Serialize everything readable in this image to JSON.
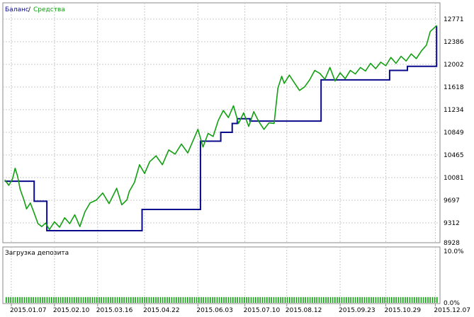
{
  "colors": {
    "balance": "#0a0a8c",
    "equity": "#12a012",
    "grid": "#c8c8c8",
    "frame": "#8a8a8a",
    "text": "#000000",
    "deposit_load": "#12a012"
  },
  "legend": {
    "balance_label": "Баланс",
    "separator": "/",
    "equity_label": "Средства"
  },
  "chart_data": [
    {
      "type": "line",
      "series": [
        {
          "name": "Баланс",
          "x": [
            "2015.01.02",
            "2015.01.17",
            "2015.01.25",
            "2015.02.04",
            "2015.02.28",
            "2015.03.08",
            "2015.03.15",
            "2015.04.01",
            "2015.04.20",
            "2015.06.03",
            "2015.06.05",
            "2015.06.20",
            "2015.06.21",
            "2015.06.29",
            "2015.06.30",
            "2015.07.03",
            "2015.07.04",
            "2015.07.13",
            "2015.07.14",
            "2015.07.28",
            "2015.08.06",
            "2015.08.15",
            "2015.09.07",
            "2015.09.08",
            "2015.10.05",
            "2015.10.24",
            "2015.11.01",
            "2015.11.15",
            "2015.12.01",
            "2015.12.05",
            "2015.12.06",
            "2015.12.08"
          ],
          "values": [
            10020,
            10020,
            9680,
            9180,
            9180,
            9180,
            9180,
            9180,
            9540,
            9540,
            10700,
            10700,
            10850,
            10850,
            11000,
            11000,
            11080,
            11080,
            11040,
            11040,
            11040,
            11040,
            11040,
            11740,
            11740,
            11740,
            11900,
            11970,
            11970,
            11970,
            11970,
            12650
          ]
        },
        {
          "name": "Средства",
          "x": [
            "2015.01.02",
            "2015.01.05",
            "2015.01.08",
            "2015.01.10",
            "2015.01.12",
            "2015.01.14",
            "2015.01.17",
            "2015.01.19",
            "2015.01.22",
            "2015.01.25",
            "2015.01.28",
            "2015.01.31",
            "2015.02.03",
            "2015.02.06",
            "2015.02.10",
            "2015.02.14",
            "2015.02.18",
            "2015.02.22",
            "2015.02.26",
            "2015.03.02",
            "2015.03.06",
            "2015.03.10",
            "2015.03.15",
            "2015.03.20",
            "2015.03.25",
            "2015.03.31",
            "2015.04.04",
            "2015.04.08",
            "2015.04.10",
            "2015.04.14",
            "2015.04.18",
            "2015.04.22",
            "2015.04.26",
            "2015.05.01",
            "2015.05.06",
            "2015.05.11",
            "2015.05.16",
            "2015.05.21",
            "2015.05.26",
            "2015.05.31",
            "2015.06.03",
            "2015.06.07",
            "2015.06.11",
            "2015.06.15",
            "2015.06.19",
            "2015.06.23",
            "2015.06.27",
            "2015.07.01",
            "2015.07.05",
            "2015.07.09",
            "2015.07.13",
            "2015.07.17",
            "2015.07.21",
            "2015.07.25",
            "2015.07.29",
            "2015.08.02",
            "2015.08.05",
            "2015.08.08",
            "2015.08.10",
            "2015.08.14",
            "2015.08.18",
            "2015.08.22",
            "2015.08.26",
            "2015.08.30",
            "2015.09.03",
            "2015.09.07",
            "2015.09.11",
            "2015.09.15",
            "2015.09.19",
            "2015.09.23",
            "2015.09.27",
            "2015.10.01",
            "2015.10.05",
            "2015.10.09",
            "2015.10.13",
            "2015.10.17",
            "2015.10.21",
            "2015.10.25",
            "2015.10.29",
            "2015.11.02",
            "2015.11.06",
            "2015.11.10",
            "2015.11.14",
            "2015.11.18",
            "2015.11.22",
            "2015.11.26",
            "2015.11.30",
            "2015.12.03",
            "2015.12.06",
            "2015.12.08"
          ],
          "values": [
            10040,
            9950,
            10060,
            10240,
            10100,
            9880,
            9700,
            9550,
            9650,
            9480,
            9300,
            9250,
            9310,
            9200,
            9330,
            9240,
            9400,
            9300,
            9450,
            9250,
            9500,
            9650,
            9700,
            9820,
            9640,
            9900,
            9620,
            9700,
            9850,
            10000,
            10300,
            10150,
            10350,
            10450,
            10300,
            10550,
            10480,
            10650,
            10500,
            10750,
            10900,
            10600,
            10830,
            10780,
            11050,
            11220,
            11100,
            11300,
            11000,
            11180,
            10950,
            11200,
            11030,
            10900,
            11010,
            11000,
            11600,
            11800,
            11680,
            11820,
            11690,
            11560,
            11620,
            11740,
            11900,
            11850,
            11750,
            11950,
            11720,
            11860,
            11760,
            11900,
            11840,
            11950,
            11890,
            12020,
            11930,
            12040,
            11980,
            12120,
            12020,
            12140,
            12060,
            12180,
            12100,
            12230,
            12330,
            12560,
            12620,
            12660
          ]
        }
      ],
      "xlabel": "",
      "ylabel": "",
      "title": "",
      "xticks": [
        "2015.01.07",
        "2015.02.10",
        "2015.03.16",
        "2015.04.22",
        "2015.06.03",
        "2015.07.10",
        "2015.08.12",
        "2015.09.23",
        "2015.10.29",
        "2015.12.07"
      ],
      "yticks": [
        "12771",
        "12386",
        "12002",
        "11618",
        "11234",
        "10849",
        "10465",
        "10081",
        "9697",
        "9312",
        "8928"
      ],
      "ylim": [
        8928,
        12771
      ],
      "xlim": [
        "2015.01.02",
        "2015.12.09"
      ],
      "grid": true,
      "legend": "top-left"
    },
    {
      "type": "bar",
      "title": "Загрузка депозита",
      "yticks": [
        "10.0%",
        "0.0%"
      ],
      "ylim": [
        0,
        10
      ],
      "xlim": [
        "2015.01.02",
        "2015.12.09"
      ],
      "bar_value_percent": 1.0,
      "bars_note": "uniform thin bars across the whole period"
    }
  ]
}
